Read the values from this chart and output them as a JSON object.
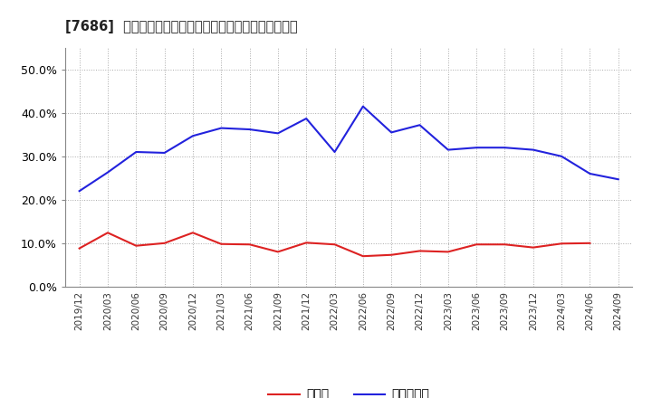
{
  "title": "[7686]  現預金、有利子負債の総資産に対する比率の推移",
  "x_labels": [
    "2019/12",
    "2020/03",
    "2020/06",
    "2020/09",
    "2020/12",
    "2021/03",
    "2021/06",
    "2021/09",
    "2021/12",
    "2022/03",
    "2022/06",
    "2022/09",
    "2022/12",
    "2023/03",
    "2023/06",
    "2023/09",
    "2023/12",
    "2024/03",
    "2024/06",
    "2024/09"
  ],
  "cash": [
    0.088,
    0.124,
    0.094,
    0.1,
    0.124,
    0.098,
    0.097,
    0.08,
    0.101,
    0.097,
    0.07,
    0.073,
    0.082,
    0.08,
    0.097,
    0.097,
    0.09,
    0.099,
    0.1,
    null
  ],
  "debt": [
    0.22,
    0.263,
    0.31,
    0.308,
    0.347,
    0.365,
    0.362,
    0.353,
    0.387,
    0.31,
    0.415,
    0.355,
    0.372,
    0.315,
    0.32,
    0.32,
    0.315,
    0.3,
    0.26,
    0.247
  ],
  "cash_color": "#dd2222",
  "debt_color": "#2222dd",
  "background_color": "#ffffff",
  "grid_color": "#aaaaaa",
  "ylim": [
    0.0,
    0.55
  ],
  "yticks": [
    0.0,
    0.1,
    0.2,
    0.3,
    0.4,
    0.5
  ],
  "legend_cash": "現預金",
  "legend_debt": "有利子負債"
}
